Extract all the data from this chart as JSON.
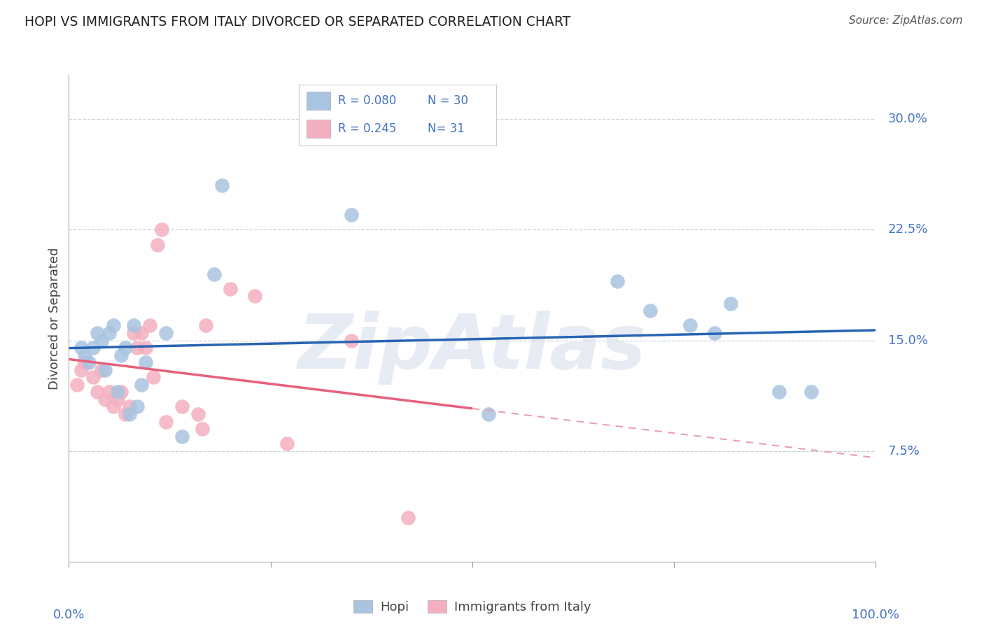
{
  "title": "HOPI VS IMMIGRANTS FROM ITALY DIVORCED OR SEPARATED CORRELATION CHART",
  "source": "Source: ZipAtlas.com",
  "ylabel": "Divorced or Separated",
  "xlim": [
    0.0,
    100.0
  ],
  "ylim": [
    0.0,
    33.0
  ],
  "yticks": [
    7.5,
    15.0,
    22.5,
    30.0
  ],
  "ytick_labels": [
    "7.5%",
    "15.0%",
    "22.5%",
    "30.0%"
  ],
  "hopi_color": "#a8c4e0",
  "italy_color": "#f4b0c0",
  "hopi_line_color": "#2864b4",
  "italy_line_color": "#e8607a",
  "dashed_line_color": "#e8a0b0",
  "hopi_x": [
    1.5,
    2.0,
    2.5,
    3.0,
    3.5,
    4.0,
    4.5,
    5.0,
    5.5,
    6.0,
    6.5,
    7.0,
    7.5,
    8.0,
    8.5,
    9.0,
    9.5,
    12.0,
    14.0,
    18.0,
    19.0,
    35.0,
    52.0,
    68.0,
    72.0,
    77.0,
    80.0,
    82.0,
    88.0,
    92.0
  ],
  "hopi_y": [
    14.5,
    14.0,
    13.5,
    14.5,
    15.5,
    15.0,
    13.0,
    15.5,
    16.0,
    11.5,
    14.0,
    14.5,
    10.0,
    16.0,
    10.5,
    12.0,
    13.5,
    15.5,
    8.5,
    19.5,
    25.5,
    23.5,
    10.0,
    19.0,
    17.0,
    16.0,
    15.5,
    17.5,
    11.5,
    11.5
  ],
  "italy_x": [
    1.0,
    1.5,
    2.0,
    3.0,
    3.5,
    4.0,
    4.5,
    5.0,
    5.5,
    6.0,
    6.5,
    7.0,
    7.5,
    8.0,
    8.5,
    9.0,
    9.5,
    10.0,
    10.5,
    11.0,
    11.5,
    12.0,
    14.0,
    16.0,
    16.5,
    17.0,
    20.0,
    27.0,
    35.0,
    42.0,
    23.0
  ],
  "italy_y": [
    12.0,
    13.0,
    13.5,
    12.5,
    11.5,
    13.0,
    11.0,
    11.5,
    10.5,
    11.0,
    11.5,
    10.0,
    10.5,
    15.5,
    14.5,
    15.5,
    14.5,
    16.0,
    12.5,
    21.5,
    22.5,
    9.5,
    10.5,
    10.0,
    9.0,
    16.0,
    18.5,
    8.0,
    15.0,
    3.0,
    18.0
  ],
  "watermark": "ZipAtlas",
  "watermark_color": "#d4dcea",
  "background_color": "#ffffff",
  "legend_R_hopi": "R = 0.080",
  "legend_N_hopi": "N = 30",
  "legend_R_italy": "R = 0.245",
  "legend_N_italy": "N = 31"
}
